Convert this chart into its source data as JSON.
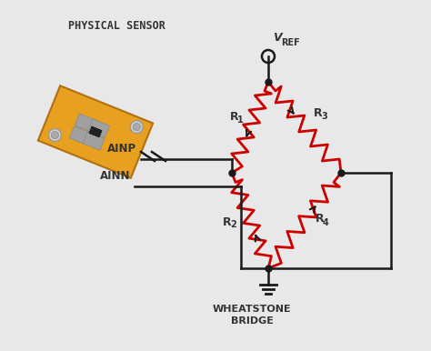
{
  "bg_color": "#e8e8e8",
  "line_color": "#1a1a1a",
  "resistor_color": "#cc0000",
  "text_color": "#333333",
  "orange_color": "#E8A020",
  "gray_color": "#888888",
  "title": "PHYSICAL SENSOR",
  "label_ainp": "AINP",
  "label_ainn": "AINN",
  "label_wb": "WHEATSTONE\nBRIDGE",
  "label_vref": "V",
  "label_vref_sub": "REF",
  "label_r1": "R",
  "label_r1_sub": "1",
  "label_r2": "R",
  "label_r2_sub": "2",
  "label_r3": "R",
  "label_r3_sub": "3",
  "label_r4": "R",
  "label_r4_sub": "4"
}
